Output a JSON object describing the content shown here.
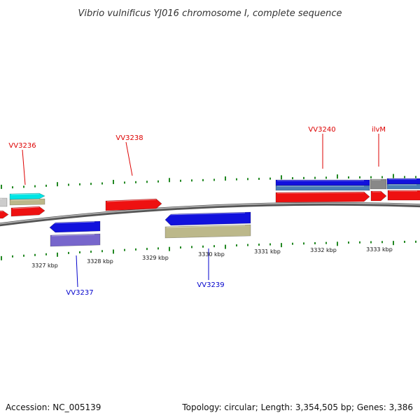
{
  "title": "Vibrio vulnificus YJ016 chromosome I, complete sequence",
  "footer": {
    "accession": "Accession: NC_005139",
    "summary": "Topology: circular; Length: 3,354,505 bp; Genes: 3,386"
  },
  "colors": {
    "forward_label": "#dd0000",
    "reverse_label": "#0000cc",
    "backbone": "#808080",
    "tick": "#228822",
    "red_feature": "#ee1111",
    "blue_feature": "#1111dd",
    "steel_feature": "#4a7fb5",
    "khaki_feature": "#bcb88a",
    "purple_feature": "#7766cc",
    "cyan_feature": "#00e5e5",
    "grey_feature": "#888888"
  },
  "scale_labels": [
    "3327 kbp",
    "3328 kbp",
    "3329 kbp",
    "3330 kbp",
    "3331 kbp",
    "3332 kbp",
    "3333 kbp"
  ],
  "gene_labels": [
    {
      "id": "vv3236",
      "text": "VV3236",
      "strand": "forward"
    },
    {
      "id": "vv3238",
      "text": "VV3238",
      "strand": "forward"
    },
    {
      "id": "vv3240",
      "text": "VV3240",
      "strand": "forward"
    },
    {
      "id": "ilvm",
      "text": "ilvM",
      "strand": "forward"
    },
    {
      "id": "vv3237",
      "text": "VV3237",
      "strand": "reverse"
    },
    {
      "id": "vv3239",
      "text": "VV3239",
      "strand": "reverse"
    }
  ]
}
